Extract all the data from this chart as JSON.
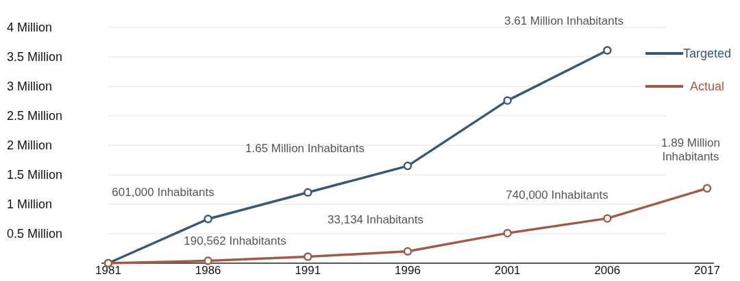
{
  "chart_data": {
    "type": "line",
    "categories": [
      "1981",
      "1986",
      "1991",
      "1996",
      "2001",
      "2006",
      "2017"
    ],
    "series": [
      {
        "name": "Targeted",
        "color": "#3b5872",
        "values": [
          0,
          0.75,
          1.2,
          1.65,
          2.76,
          3.61,
          null
        ]
      },
      {
        "name": "Actual",
        "color": "#a05a45",
        "values": [
          0,
          0.04,
          0.11,
          0.2,
          0.51,
          0.76,
          1.27
        ]
      }
    ],
    "ylim": [
      0,
      4
    ],
    "yticks": [
      {
        "value": 0.5,
        "label": "0.5 Million"
      },
      {
        "value": 1,
        "label": "1 Million"
      },
      {
        "value": 1.5,
        "label": "1.5 Million"
      },
      {
        "value": 2,
        "label": "2 Million"
      },
      {
        "value": 2.5,
        "label": "2.5 Million"
      },
      {
        "value": 3,
        "label": "3 Million"
      },
      {
        "value": 3.5,
        "label": "3.5 Million"
      },
      {
        "value": 4,
        "label": "4 Million"
      }
    ],
    "grid": "y",
    "legend": "top right",
    "marker": "circle",
    "line_style": "solid",
    "annotations": [
      "3.61 Million Inhabitants",
      "1.65 Million Inhabitants",
      "601,000 Inhabitants",
      "33,134 Inhabitants",
      "740,000 Inhabitants",
      "190,562 Inhabitants",
      "1.89 Million Inhabitants"
    ]
  }
}
